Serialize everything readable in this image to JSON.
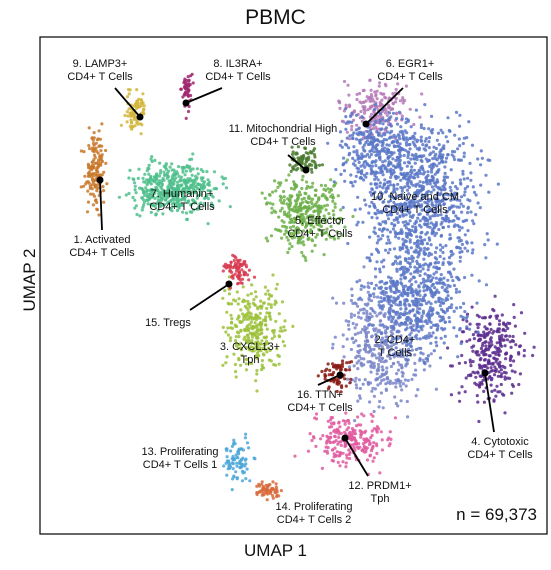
{
  "chart_data": {
    "type": "scatter",
    "title": "PBMC",
    "xlabel": "UMAP 1",
    "ylabel": "UMAP 2",
    "annotation": "n = 69,373",
    "grid": false,
    "clusters": [
      {
        "id": 1,
        "label_lines": [
          "1. Activated",
          "CD4+ T Cells"
        ],
        "color": "#c8782a"
      },
      {
        "id": 2,
        "label_lines": [
          "2. CD4+",
          "T Cells"
        ],
        "color": "#7a86c8"
      },
      {
        "id": 3,
        "label_lines": [
          "3. CXCL13+",
          "Tph"
        ],
        "color": "#9cc23c"
      },
      {
        "id": 4,
        "label_lines": [
          "4. Cytotoxic",
          "CD4+ T Cells"
        ],
        "color": "#5a2c8e"
      },
      {
        "id": 5,
        "label_lines": [
          "5. Effector",
          "CD4+ T Cells"
        ],
        "color": "#6db04a"
      },
      {
        "id": 6,
        "label_lines": [
          "6. EGR1+",
          "CD4+ T Cells"
        ],
        "color": "#b57ab7"
      },
      {
        "id": 7,
        "label_lines": [
          "7. Humanin+",
          "CD4+ T Cells"
        ],
        "color": "#4fc08c"
      },
      {
        "id": 8,
        "label_lines": [
          "8. IL3RA+",
          "CD4+ T Cells"
        ],
        "color": "#a0266e"
      },
      {
        "id": 9,
        "label_lines": [
          "9. LAMP3+",
          "CD4+ T Cells"
        ],
        "color": "#d2b63c"
      },
      {
        "id": 10,
        "label_lines": [
          "10. Naive and CM",
          "CD4+ T Cells"
        ],
        "color": "#5a78c8"
      },
      {
        "id": 11,
        "label_lines": [
          "11. Mitochondrial High",
          "CD4+ T Cells"
        ],
        "color": "#4a7a30"
      },
      {
        "id": 12,
        "label_lines": [
          "12. PRDM1+",
          "Tph"
        ],
        "color": "#e05aa0"
      },
      {
        "id": 13,
        "label_lines": [
          "13. Proliferating",
          "CD4+ T Cells 1"
        ],
        "color": "#4aa6d8"
      },
      {
        "id": 14,
        "label_lines": [
          "14. Proliferating",
          "CD4+ T Cells 2"
        ],
        "color": "#d86a3c"
      },
      {
        "id": 15,
        "label_lines": [
          "15. Tregs"
        ],
        "color": "#d83a50"
      },
      {
        "id": 16,
        "label_lines": [
          "16. TTN+",
          "CD4+ T Cells"
        ],
        "color": "#8a1a14"
      }
    ]
  }
}
